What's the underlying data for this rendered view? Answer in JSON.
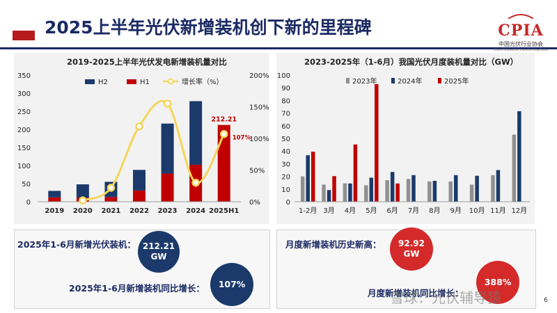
{
  "header": {
    "title": "2025上半年光伏新增装机创下新的里程碑",
    "logo_text": "CPIA",
    "logo_cn": "中国光伏行业协会",
    "logo_en": "China Photovoltaic Industry Association"
  },
  "chart_data": [
    {
      "type": "bar",
      "title": "2019-2025上半年光伏发电新增装机量对比",
      "categories": [
        "2019",
        "2020",
        "2021",
        "2022",
        "2023",
        "2024",
        "2025H1"
      ],
      "series": [
        {
          "name": "H2",
          "color": "#1b3a6b",
          "values": [
            18,
            37,
            42,
            57,
            138,
            176,
            0
          ]
        },
        {
          "name": "H1",
          "color": "#c00000",
          "values": [
            12,
            11,
            13,
            31,
            78,
            102,
            212.21
          ]
        },
        {
          "name": "增长率（%）",
          "type": "line",
          "axis": "right",
          "color": "#f5d55a",
          "values": [
            null,
            2,
            22,
            119,
            155,
            30,
            107
          ]
        }
      ],
      "y_left": {
        "ticks": [
          "0",
          "50",
          "100",
          "150",
          "200",
          "250",
          "300",
          "350"
        ],
        "ylim": [
          0,
          350
        ]
      },
      "y_right": {
        "ticks": [
          "0%",
          "50%",
          "100%",
          "150%",
          "200%"
        ],
        "ylim": [
          0,
          200
        ]
      },
      "annotations": {
        "value_label": "212.21",
        "growth_label": "107%"
      },
      "legend": "top"
    },
    {
      "type": "bar",
      "title": "2023-2025年（1-6月）我国光伏月度装机量对比（GW）",
      "categories": [
        "1-2月",
        "3月",
        "4月",
        "5月",
        "6月",
        "7月",
        "8月",
        "9月",
        "10月",
        "11月",
        "12月"
      ],
      "series": [
        {
          "name": "2023年",
          "color": "#909090",
          "values": [
            20,
            13.5,
            14.5,
            13,
            17,
            18,
            16,
            16,
            13.5,
            21,
            53
          ]
        },
        {
          "name": "2024年",
          "color": "#1b3a6b",
          "values": [
            36.7,
            9.2,
            14.4,
            19,
            23.5,
            21,
            16.5,
            21,
            20.5,
            25,
            71.5
          ]
        },
        {
          "name": "2025年",
          "color": "#c00000",
          "values": [
            39.5,
            20.2,
            45.2,
            92.9,
            14.4,
            null,
            null,
            null,
            null,
            null,
            null
          ]
        }
      ],
      "y_ticks": [
        "0",
        "10",
        "20",
        "30",
        "40",
        "50",
        "60",
        "70",
        "80",
        "90",
        "100"
      ],
      "ylim": [
        0,
        100
      ],
      "legend": "top"
    }
  ],
  "stats": {
    "left": {
      "label1": "2025年1-6月新增光伏装机：",
      "value1_line1": "212.21",
      "value1_line2": "GW",
      "label2": "2025年1-6月新增装机同比增长：",
      "value2": "107%"
    },
    "right": {
      "label1": "月度新增装机历史新高：",
      "value1_line1": "92.92",
      "value1_line2": "GW",
      "label2": "月度新增装机同比增长：",
      "value2": "388%"
    }
  },
  "watermark": "雪球：光伏辅导猿",
  "page_number": "6"
}
